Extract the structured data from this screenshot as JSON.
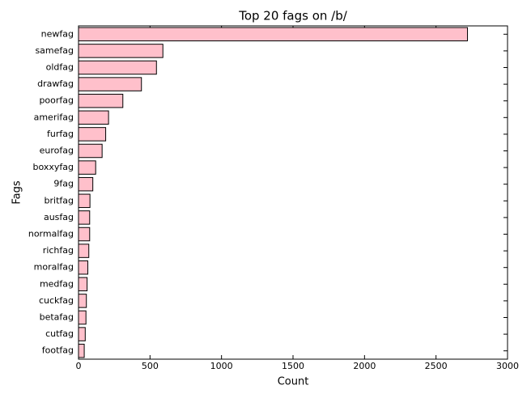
{
  "chart_data": {
    "type": "barh",
    "title": "Top 20 fags on /b/",
    "x_label": "Count",
    "y_label": "Fags",
    "categories": [
      "newfag",
      "samefag",
      "oldfag",
      "drawfag",
      "poorfag",
      "amerifag",
      "furfag",
      "eurofag",
      "boxxyfag",
      "9fag",
      "britfag",
      "ausfag",
      "normalfag",
      "richfag",
      "moralfag",
      "medfag",
      "cuckfag",
      "betafag",
      "cutfag",
      "footfag"
    ],
    "values": [
      2720,
      590,
      545,
      440,
      310,
      210,
      190,
      165,
      120,
      100,
      80,
      78,
      78,
      72,
      65,
      60,
      55,
      52,
      47,
      40
    ],
    "color": "#ffc0cb",
    "xlim": [
      0,
      3000
    ],
    "xticks": [
      0,
      500,
      1000,
      1500,
      2000,
      2500,
      3000
    ],
    "grid": false
  }
}
